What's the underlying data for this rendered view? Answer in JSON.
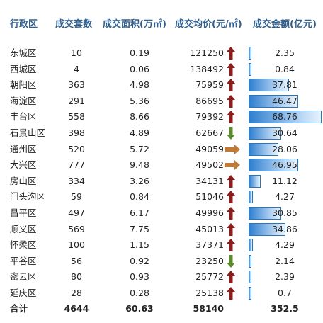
{
  "headers": {
    "district": "行政区",
    "count": "成交套数",
    "area": "成交面积(万㎡)",
    "price": "成交均价(元/㎡)",
    "amount": "成交金额(亿元)"
  },
  "colors": {
    "up": "#8b1d1d",
    "down": "#5b8b2e",
    "flat": "#c07a35",
    "bar": "#2f7fd0",
    "header": "#2f5f8e"
  },
  "amount_scale_max": 68.76,
  "rows": [
    {
      "district": "东城区",
      "count": "10",
      "area": "0.19",
      "price": "121250",
      "amount": "2.35",
      "amount_value": 2.35,
      "trend": "up-arrow-icon"
    },
    {
      "district": "西城区",
      "count": "4",
      "area": "0.06",
      "price": "138492",
      "amount": "0.84",
      "amount_value": 0.84,
      "trend": "up-arrow-icon"
    },
    {
      "district": "朝阳区",
      "count": "363",
      "area": "4.98",
      "price": "75959",
      "amount": "37.81",
      "amount_value": 37.81,
      "trend": "up-arrow-icon"
    },
    {
      "district": "海淀区",
      "count": "291",
      "area": "5.36",
      "price": "86695",
      "amount": "46.47",
      "amount_value": 46.47,
      "trend": "up-arrow-icon"
    },
    {
      "district": "丰台区",
      "count": "558",
      "area": "8.66",
      "price": "79392",
      "amount": "68.76",
      "amount_value": 68.76,
      "trend": "up-arrow-icon"
    },
    {
      "district": "石景山区",
      "count": "398",
      "area": "4.89",
      "price": "62667",
      "amount": "30.64",
      "amount_value": 30.64,
      "trend": "down-arrow-icon"
    },
    {
      "district": "通州区",
      "count": "520",
      "area": "5.72",
      "price": "49059",
      "amount": "28.06",
      "amount_value": 28.06,
      "trend": "right-arrow-icon"
    },
    {
      "district": "大兴区",
      "count": "777",
      "area": "9.48",
      "price": "49502",
      "amount": "46.95",
      "amount_value": 46.95,
      "trend": "right-arrow-icon"
    },
    {
      "district": "房山区",
      "count": "334",
      "area": "3.26",
      "price": "34131",
      "amount": "11.12",
      "amount_value": 11.12,
      "trend": "up-arrow-icon"
    },
    {
      "district": "门头沟区",
      "count": "59",
      "area": "0.84",
      "price": "51046",
      "amount": "4.27",
      "amount_value": 4.27,
      "trend": "up-arrow-icon"
    },
    {
      "district": "昌平区",
      "count": "497",
      "area": "6.17",
      "price": "49996",
      "amount": "30.85",
      "amount_value": 30.85,
      "trend": "up-arrow-icon"
    },
    {
      "district": "顺义区",
      "count": "569",
      "area": "7.75",
      "price": "45013",
      "amount": "34.86",
      "amount_value": 34.86,
      "trend": "up-arrow-icon"
    },
    {
      "district": "怀柔区",
      "count": "100",
      "area": "1.15",
      "price": "37371",
      "amount": "4.29",
      "amount_value": 4.29,
      "trend": "up-arrow-icon"
    },
    {
      "district": "平谷区",
      "count": "56",
      "area": "0.92",
      "price": "23250",
      "amount": "2.14",
      "amount_value": 2.14,
      "trend": "down-arrow-icon"
    },
    {
      "district": "密云区",
      "count": "80",
      "area": "0.93",
      "price": "25772",
      "amount": "2.39",
      "amount_value": 2.39,
      "trend": "up-arrow-icon"
    },
    {
      "district": "延庆区",
      "count": "28",
      "area": "0.28",
      "price": "25138",
      "amount": "0.7",
      "amount_value": 0.7,
      "trend": "up-arrow-icon"
    }
  ],
  "total": {
    "label": "合计",
    "count": "4644",
    "area": "60.63",
    "price": "58140",
    "amount": "352.5"
  }
}
